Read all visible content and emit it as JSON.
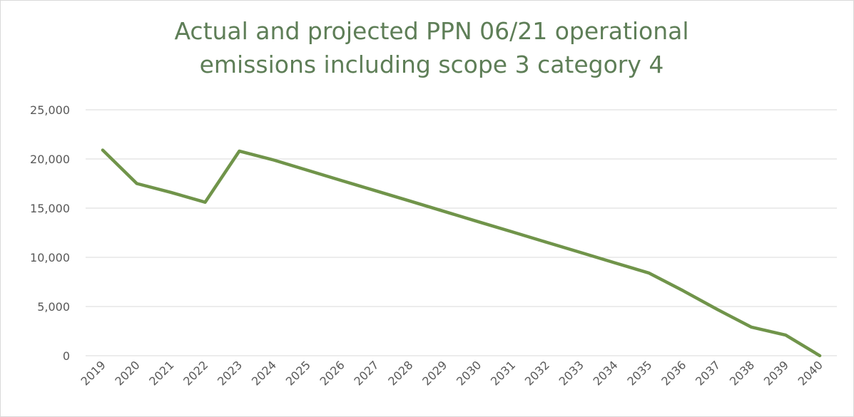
{
  "chart_data": {
    "type": "line",
    "title_lines": [
      "Actual and projected PPN 06/21 operational",
      "emissions including scope 3 category 4"
    ],
    "categories": [
      "2019",
      "2020",
      "2021",
      "2022",
      "2023",
      "2024",
      "2025",
      "2026",
      "2027",
      "2028",
      "2029",
      "2030",
      "2031",
      "2032",
      "2033",
      "2034",
      "2035",
      "2036",
      "2037",
      "2038",
      "2039",
      "2040"
    ],
    "series": [
      {
        "name": "Emissions",
        "color": "#70944a",
        "values": [
          20900,
          17500,
          16600,
          15600,
          20800,
          19900,
          18850,
          17800,
          16760,
          15720,
          14670,
          13620,
          12580,
          11530,
          10490,
          9440,
          8400,
          6600,
          4700,
          2900,
          2100,
          0
        ]
      }
    ],
    "ylim": [
      0,
      25000
    ],
    "yticks": [
      0,
      {
        "value": 5000,
        "label": "5,000"
      },
      {
        "value": 10000,
        "label": "10,000"
      },
      {
        "value": 15000,
        "label": "15,000"
      },
      {
        "value": 20000,
        "label": "20,000"
      },
      {
        "value": 25000,
        "label": "25,000"
      }
    ],
    "grid": true
  }
}
